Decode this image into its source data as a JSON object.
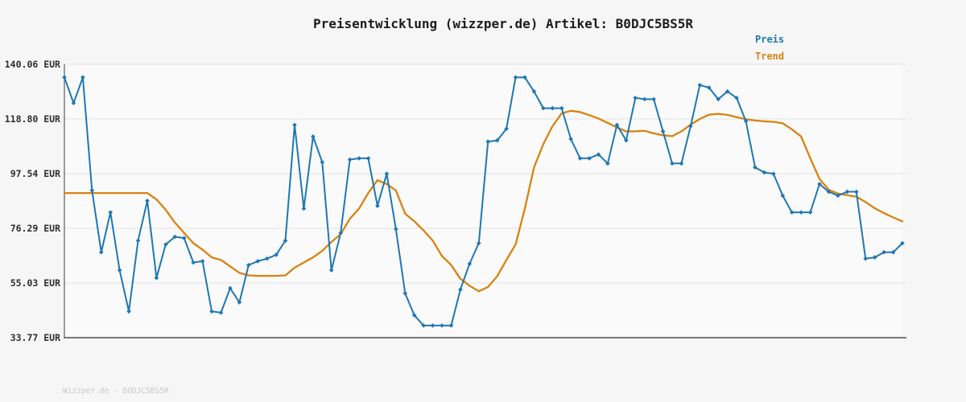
{
  "title": "Preisentwicklung (wizzper.de) Artikel: B0DJC5BS5R",
  "footer": "Wizzper.de - B0DJC5BS5R",
  "legend": {
    "price_label": "Preis",
    "trend_label": "Trend"
  },
  "colors": {
    "price": "#1f77b4",
    "trend": "#d9820f",
    "grid": "#e3e3e3",
    "axis": "#7a7a7a",
    "plot_background": "#fafafa",
    "page_background": "#f6f6f6",
    "title_text": "#1c1c1c",
    "tick_text": "#2e2e2e",
    "footer_text": "#c9c9c9"
  },
  "chart_data": {
    "type": "line",
    "title": "Preisentwicklung (wizzper.de) Artikel: B0DJC5BS5R",
    "xlabel": "",
    "ylabel": "",
    "x_tick_labels": [],
    "y_ticks": [
      "140.06 EUR",
      "118.80 EUR",
      "97.54 EUR",
      "76.29 EUR",
      "55.03 EUR",
      "33.77 EUR"
    ],
    "y_tick_values": [
      140.06,
      118.8,
      97.54,
      76.29,
      55.03,
      33.77
    ],
    "ylim": [
      33.77,
      140.06
    ],
    "grid": true,
    "legend_position": "top-right",
    "unit": "EUR",
    "series": [
      {
        "name": "Preis",
        "color": "#1f77b4",
        "marker": "diamond",
        "values": [
          135,
          125,
          135,
          91,
          67,
          82.5,
          60,
          44,
          71.5,
          87,
          57,
          70,
          73,
          72.5,
          63,
          63.5,
          44,
          43.5,
          53,
          47.5,
          62,
          63.5,
          64.5,
          66,
          71.5,
          116.5,
          84,
          112,
          102,
          60,
          74.5,
          103,
          103.5,
          103.5,
          85,
          97.5,
          76,
          51,
          42.5,
          38.5,
          38.5,
          38.5,
          38.5,
          52.5,
          62.5,
          70.5,
          110,
          110.5,
          115,
          135,
          135,
          129.5,
          123,
          123,
          123,
          111,
          103.5,
          103.5,
          105,
          101.5,
          116.5,
          110.5,
          127,
          126.5,
          126.5,
          114,
          101.5,
          101.5,
          116,
          132,
          131,
          126.5,
          129.5,
          127,
          118,
          100,
          98,
          97.5,
          89,
          82.5,
          82.5,
          82.5,
          93.5,
          90.5,
          89,
          90.5,
          90.5,
          64.5,
          65,
          67,
          67,
          70.5
        ]
      },
      {
        "name": "Trend",
        "color": "#d9820f",
        "marker": "none",
        "values": [
          90,
          90,
          90,
          90,
          90,
          90,
          90,
          90,
          90,
          90,
          87.5,
          83.5,
          78.5,
          74.5,
          70.5,
          68,
          65,
          64,
          61.5,
          59,
          58,
          57.8,
          57.8,
          57.8,
          58,
          61,
          63,
          65,
          67.5,
          71,
          74,
          80,
          84,
          90,
          95,
          93.5,
          91,
          82,
          79,
          75.5,
          71.5,
          65.5,
          62,
          56.7,
          54,
          51.8,
          53.5,
          57.7,
          64,
          70,
          84,
          100,
          109,
          116,
          121,
          122,
          121.5,
          120.3,
          119,
          117.3,
          115.5,
          114,
          114,
          114.2,
          113.2,
          112.5,
          112.1,
          114,
          116.6,
          118.8,
          120.5,
          120.8,
          120.4,
          119.5,
          118.7,
          118.2,
          117.9,
          117.7,
          117.1,
          114.8,
          112,
          103.5,
          95.5,
          91.3,
          89.8,
          89.2,
          88.6,
          86.5,
          84.1,
          82.2,
          80.5,
          79
        ]
      }
    ]
  }
}
